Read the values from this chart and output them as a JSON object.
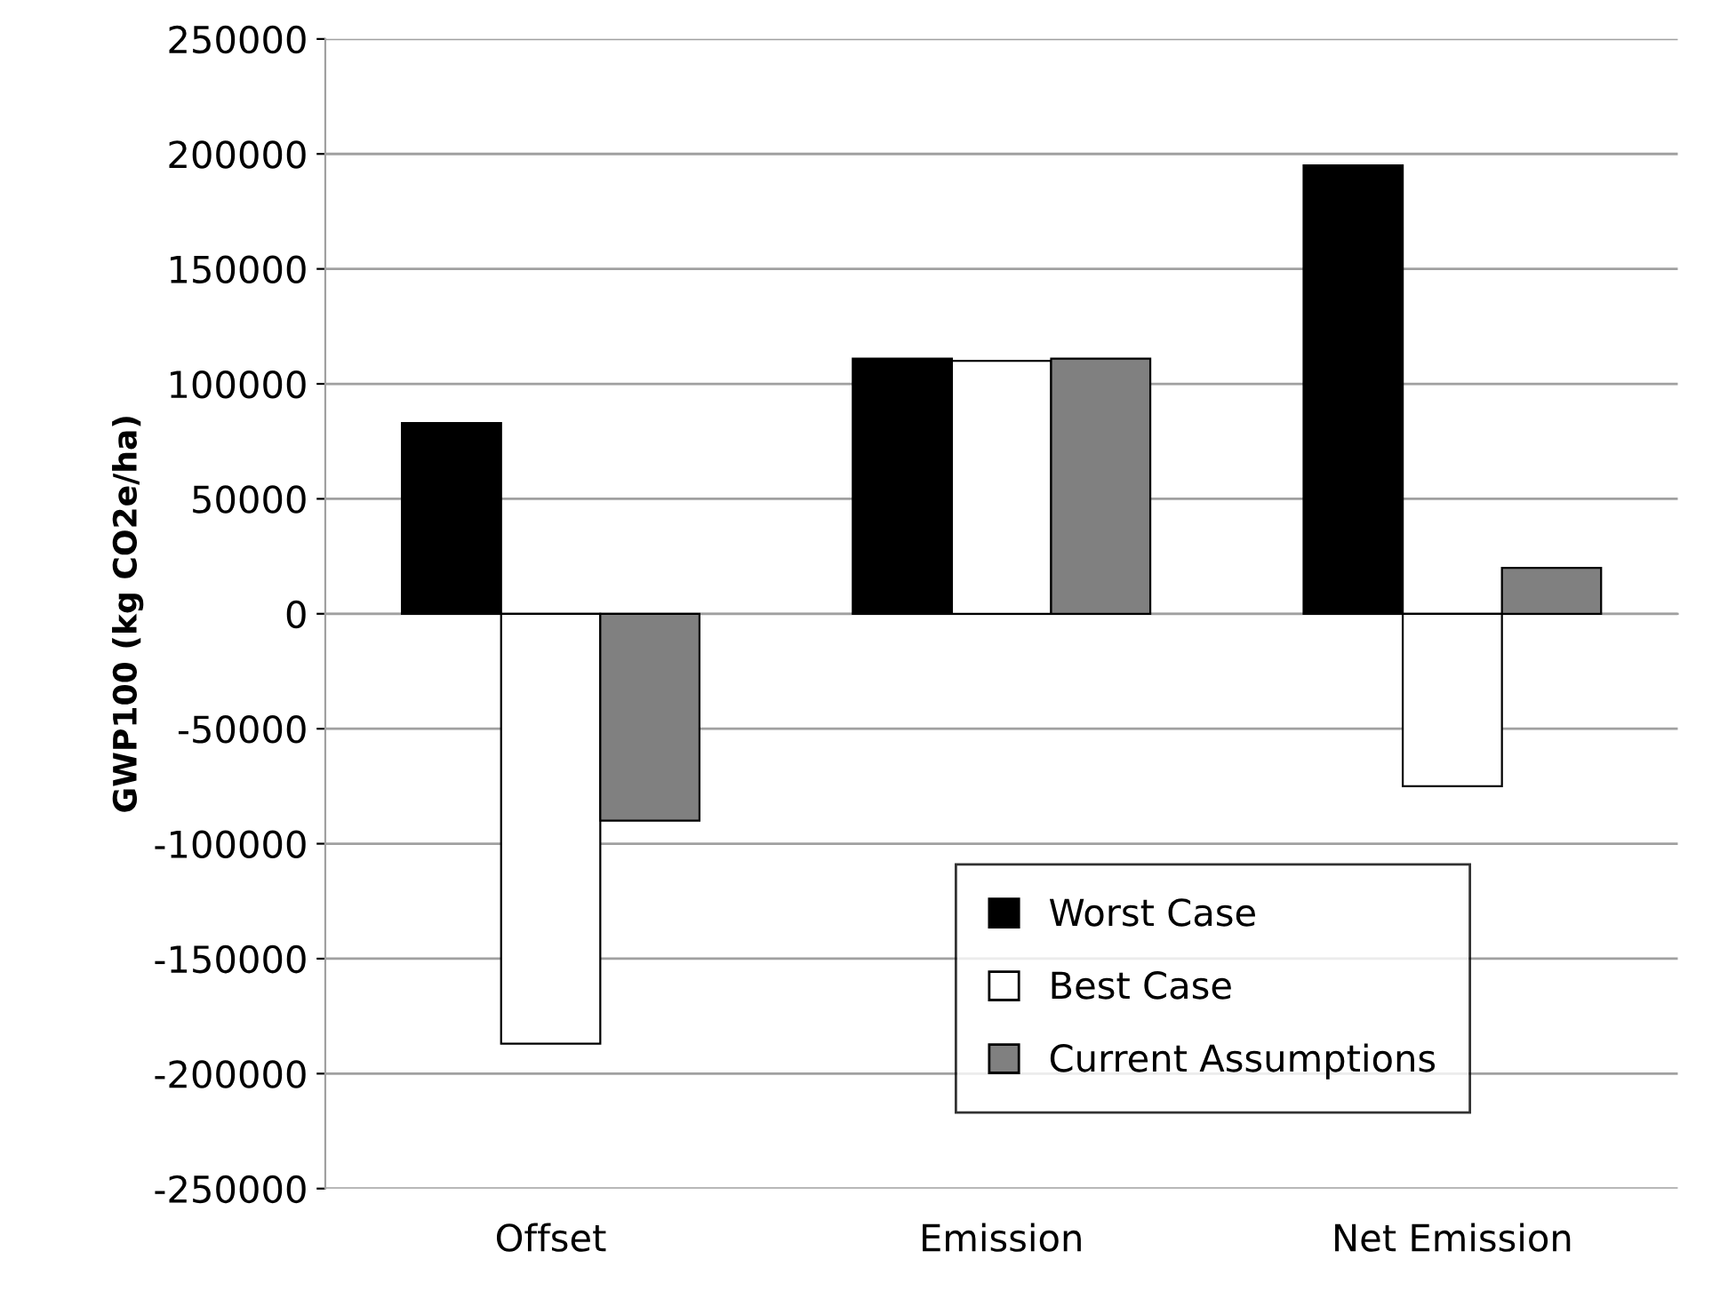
{
  "chart_data": {
    "type": "bar",
    "ylabel": "GWP100 (kg CO2e/ha)",
    "categories": [
      "Offset",
      "Emission",
      "Net Emission"
    ],
    "series": [
      {
        "name": "Worst Case",
        "color": "#000000",
        "values": [
          83000,
          111000,
          195000
        ]
      },
      {
        "name": "Best Case",
        "color": "#ffffff",
        "values": [
          -187000,
          110000,
          -75000
        ]
      },
      {
        "name": "Current Assumptions",
        "color": "#808080",
        "values": [
          -90000,
          111000,
          20000
        ]
      }
    ],
    "ylim": [
      -250000,
      250000
    ],
    "yticks": [
      -250000,
      -200000,
      -150000,
      -100000,
      -50000,
      0,
      50000,
      100000,
      150000,
      200000,
      250000
    ],
    "grid": "y",
    "legend": "bottom right"
  }
}
